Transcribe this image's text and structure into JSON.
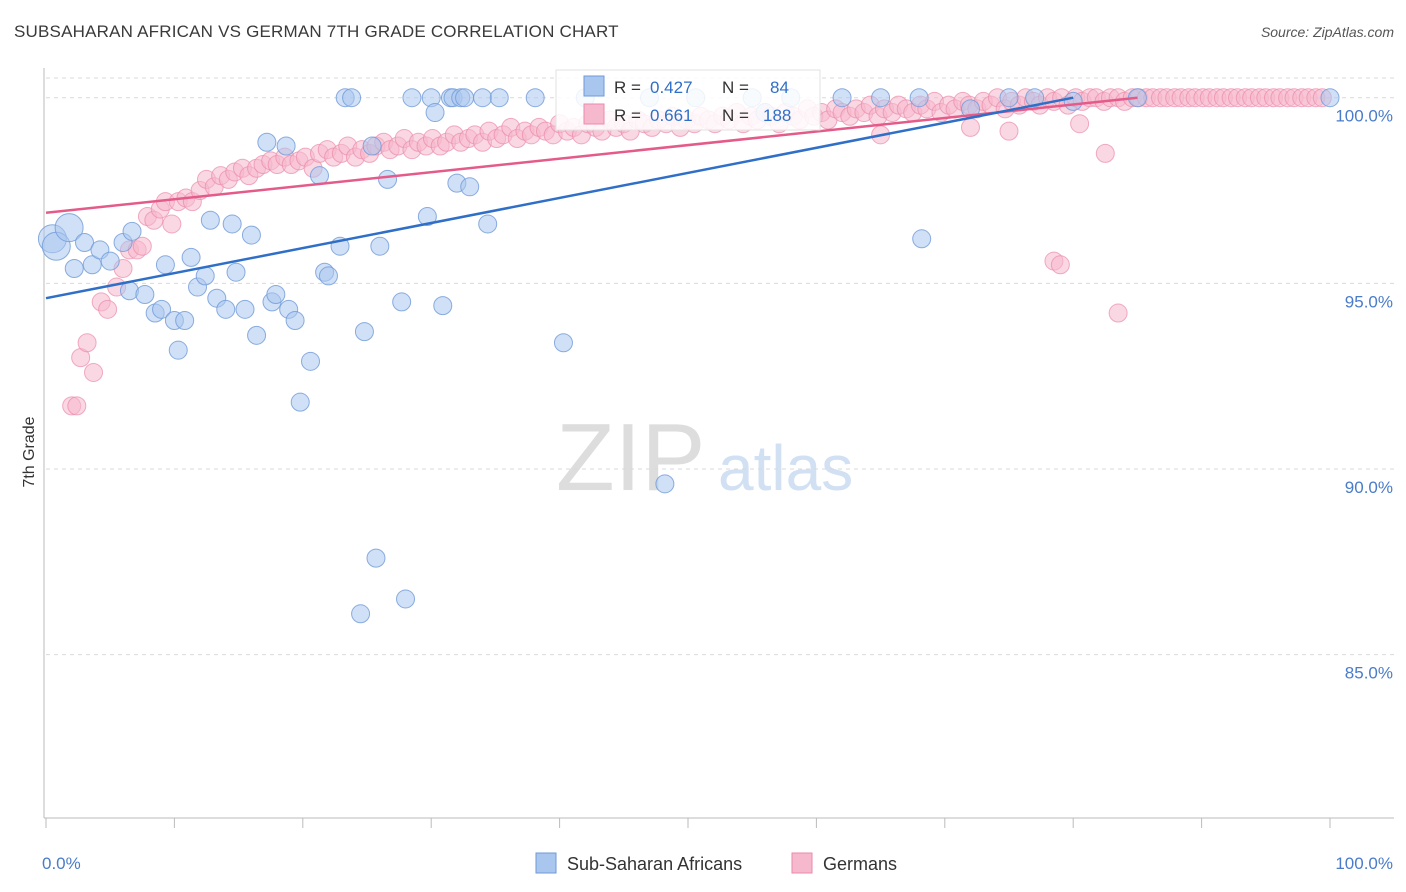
{
  "header": {
    "title": "SUBSAHARAN AFRICAN VS GERMAN 7TH GRADE CORRELATION CHART",
    "source": "Source: ZipAtlas.com"
  },
  "watermark": {
    "zip": "ZIP",
    "atlas": "atlas"
  },
  "legend_stats": {
    "r_label": "R =",
    "n_label": "N =",
    "rows": [
      {
        "r": "0.427",
        "n": "84",
        "color": "#a9c6ee"
      },
      {
        "r": "0.661",
        "n": "188",
        "color": "#f6b8cc"
      }
    ]
  },
  "colors": {
    "blue_fill": "#a9c6ee",
    "blue_stroke": "#6f9ad8",
    "blue_line": "#2f6fc7",
    "pink_fill": "#f6b8cc",
    "pink_stroke": "#eb8aaa",
    "pink_line": "#e45b8a",
    "tick_label": "#4a7cc9",
    "grid": "#d9d9d9"
  },
  "chart_data": {
    "type": "scatter",
    "title": "SUBSAHARAN AFRICAN VS GERMAN 7TH GRADE CORRELATION CHART",
    "xlabel": "",
    "ylabel": "7th Grade",
    "x_tick_labels": [
      "0.0%",
      "100.0%"
    ],
    "y_tick_labels": [
      "85.0%",
      "90.0%",
      "95.0%",
      "100.0%"
    ],
    "y_ticks": [
      85,
      90,
      95,
      100
    ],
    "xlim": [
      0,
      100
    ],
    "ylim": [
      80.6,
      100.8
    ],
    "grid": "horizontal dashed",
    "legend_position": "bottom",
    "series": [
      {
        "name": "Sub-Saharan Africans",
        "color": "#a9c6ee",
        "r": 0.427,
        "n": 84,
        "trend": {
          "x": [
            0,
            80
          ],
          "y": [
            94.6,
            100.0
          ]
        },
        "points": [
          [
            0.5,
            96.2
          ],
          [
            0.8,
            96.0
          ],
          [
            1.8,
            96.5
          ],
          [
            2.2,
            95.4
          ],
          [
            3.0,
            96.1
          ],
          [
            3.6,
            95.5
          ],
          [
            4.2,
            95.9
          ],
          [
            5.0,
            95.6
          ],
          [
            6.0,
            96.1
          ],
          [
            6.5,
            94.8
          ],
          [
            6.7,
            96.4
          ],
          [
            7.7,
            94.7
          ],
          [
            8.5,
            94.2
          ],
          [
            9.0,
            94.3
          ],
          [
            9.3,
            95.5
          ],
          [
            10.0,
            94.0
          ],
          [
            10.3,
            93.2
          ],
          [
            10.8,
            94.0
          ],
          [
            11.3,
            95.7
          ],
          [
            11.8,
            94.9
          ],
          [
            12.4,
            95.2
          ],
          [
            12.8,
            96.7
          ],
          [
            13.3,
            94.6
          ],
          [
            14.0,
            94.3
          ],
          [
            14.5,
            96.6
          ],
          [
            14.8,
            95.3
          ],
          [
            15.5,
            94.3
          ],
          [
            16.0,
            96.3
          ],
          [
            16.4,
            93.6
          ],
          [
            17.2,
            98.8
          ],
          [
            17.6,
            94.5
          ],
          [
            17.9,
            94.7
          ],
          [
            18.7,
            98.7
          ],
          [
            18.9,
            94.3
          ],
          [
            19.4,
            94.0
          ],
          [
            19.8,
            91.8
          ],
          [
            20.6,
            92.9
          ],
          [
            21.3,
            97.9
          ],
          [
            21.7,
            95.3
          ],
          [
            22.0,
            95.2
          ],
          [
            22.9,
            96.0
          ],
          [
            23.3,
            100.0
          ],
          [
            23.8,
            100.0
          ],
          [
            24.5,
            86.1
          ],
          [
            24.8,
            93.7
          ],
          [
            25.4,
            98.7
          ],
          [
            25.7,
            87.6
          ],
          [
            26.0,
            96.0
          ],
          [
            26.6,
            97.8
          ],
          [
            27.7,
            94.5
          ],
          [
            28.0,
            86.5
          ],
          [
            28.5,
            100.0
          ],
          [
            29.7,
            96.8
          ],
          [
            30.0,
            100.0
          ],
          [
            30.3,
            99.6
          ],
          [
            30.9,
            94.4
          ],
          [
            31.5,
            100.0
          ],
          [
            31.7,
            100.0
          ],
          [
            32.0,
            97.7
          ],
          [
            32.3,
            100.0
          ],
          [
            32.6,
            100.0
          ],
          [
            33.0,
            97.6
          ],
          [
            34.0,
            100.0
          ],
          [
            34.4,
            96.6
          ],
          [
            35.3,
            100.0
          ],
          [
            38.1,
            100.0
          ],
          [
            40.3,
            93.4
          ],
          [
            42.0,
            100.0
          ],
          [
            47.0,
            100.0
          ],
          [
            48.2,
            89.6
          ],
          [
            50.6,
            100.0
          ],
          [
            55.0,
            100.0
          ],
          [
            56.0,
            99.6
          ],
          [
            58.0,
            100.0
          ],
          [
            62.0,
            100.0
          ],
          [
            65.0,
            100.0
          ],
          [
            68.0,
            100.0
          ],
          [
            68.2,
            96.2
          ],
          [
            72.0,
            99.7
          ],
          [
            75.0,
            100.0
          ],
          [
            77.0,
            100.0
          ],
          [
            80.0,
            99.9
          ],
          [
            85.0,
            100.0
          ],
          [
            100.0,
            100.0
          ]
        ]
      },
      {
        "name": "Germans",
        "color": "#f6b8cc",
        "r": 0.661,
        "n": 188,
        "trend": {
          "x": [
            0,
            85
          ],
          "y": [
            96.9,
            100.0
          ]
        },
        "points": [
          [
            2.0,
            91.7
          ],
          [
            2.4,
            91.7
          ],
          [
            2.7,
            93.0
          ],
          [
            3.2,
            93.4
          ],
          [
            3.7,
            92.6
          ],
          [
            4.3,
            94.5
          ],
          [
            4.8,
            94.3
          ],
          [
            5.5,
            94.9
          ],
          [
            6.0,
            95.4
          ],
          [
            6.5,
            95.9
          ],
          [
            7.1,
            95.9
          ],
          [
            7.5,
            96.0
          ],
          [
            7.9,
            96.8
          ],
          [
            8.4,
            96.7
          ],
          [
            8.9,
            97.0
          ],
          [
            9.3,
            97.2
          ],
          [
            9.8,
            96.6
          ],
          [
            10.3,
            97.2
          ],
          [
            10.9,
            97.3
          ],
          [
            11.4,
            97.2
          ],
          [
            12.0,
            97.5
          ],
          [
            12.5,
            97.8
          ],
          [
            13.1,
            97.6
          ],
          [
            13.6,
            97.9
          ],
          [
            14.2,
            97.8
          ],
          [
            14.7,
            98.0
          ],
          [
            15.3,
            98.1
          ],
          [
            15.8,
            97.9
          ],
          [
            16.4,
            98.1
          ],
          [
            16.9,
            98.2
          ],
          [
            17.5,
            98.3
          ],
          [
            18.0,
            98.2
          ],
          [
            18.6,
            98.4
          ],
          [
            19.1,
            98.2
          ],
          [
            19.7,
            98.3
          ],
          [
            20.2,
            98.4
          ],
          [
            20.8,
            98.1
          ],
          [
            21.3,
            98.5
          ],
          [
            21.9,
            98.6
          ],
          [
            22.4,
            98.4
          ],
          [
            23.0,
            98.5
          ],
          [
            23.5,
            98.7
          ],
          [
            24.1,
            98.4
          ],
          [
            24.6,
            98.6
          ],
          [
            25.2,
            98.5
          ],
          [
            25.7,
            98.7
          ],
          [
            26.3,
            98.8
          ],
          [
            26.8,
            98.6
          ],
          [
            27.4,
            98.7
          ],
          [
            27.9,
            98.9
          ],
          [
            28.5,
            98.6
          ],
          [
            29.0,
            98.8
          ],
          [
            29.6,
            98.7
          ],
          [
            30.1,
            98.9
          ],
          [
            30.7,
            98.7
          ],
          [
            31.2,
            98.8
          ],
          [
            31.8,
            99.0
          ],
          [
            32.3,
            98.8
          ],
          [
            32.9,
            98.9
          ],
          [
            33.4,
            99.0
          ],
          [
            34.0,
            98.8
          ],
          [
            34.5,
            99.1
          ],
          [
            35.1,
            98.9
          ],
          [
            35.6,
            99.0
          ],
          [
            36.2,
            99.2
          ],
          [
            36.7,
            98.9
          ],
          [
            37.3,
            99.1
          ],
          [
            37.8,
            99.0
          ],
          [
            38.4,
            99.2
          ],
          [
            38.9,
            99.1
          ],
          [
            39.5,
            99.0
          ],
          [
            40.0,
            99.3
          ],
          [
            40.6,
            99.1
          ],
          [
            41.1,
            99.2
          ],
          [
            41.7,
            99.0
          ],
          [
            42.2,
            99.3
          ],
          [
            42.8,
            99.2
          ],
          [
            43.3,
            99.1
          ],
          [
            43.9,
            99.4
          ],
          [
            44.4,
            99.2
          ],
          [
            45.0,
            99.3
          ],
          [
            45.5,
            99.1
          ],
          [
            46.1,
            99.4
          ],
          [
            46.6,
            99.3
          ],
          [
            47.2,
            99.2
          ],
          [
            47.7,
            99.4
          ],
          [
            48.3,
            99.3
          ],
          [
            48.8,
            99.5
          ],
          [
            49.4,
            99.2
          ],
          [
            49.9,
            99.4
          ],
          [
            50.5,
            99.3
          ],
          [
            51.0,
            99.5
          ],
          [
            51.6,
            99.4
          ],
          [
            52.1,
            99.3
          ],
          [
            52.7,
            99.5
          ],
          [
            53.2,
            99.4
          ],
          [
            53.8,
            99.6
          ],
          [
            54.3,
            99.3
          ],
          [
            54.9,
            99.5
          ],
          [
            55.4,
            99.4
          ],
          [
            56.0,
            99.6
          ],
          [
            56.5,
            99.5
          ],
          [
            57.1,
            99.3
          ],
          [
            57.6,
            99.6
          ],
          [
            58.2,
            99.5
          ],
          [
            58.7,
            99.4
          ],
          [
            59.3,
            99.7
          ],
          [
            59.8,
            99.5
          ],
          [
            60.4,
            99.6
          ],
          [
            60.9,
            99.4
          ],
          [
            61.5,
            99.7
          ],
          [
            62.0,
            99.6
          ],
          [
            62.6,
            99.5
          ],
          [
            63.1,
            99.7
          ],
          [
            63.7,
            99.6
          ],
          [
            64.2,
            99.8
          ],
          [
            64.8,
            99.5
          ],
          [
            65.3,
            99.7
          ],
          [
            65.9,
            99.6
          ],
          [
            66.4,
            99.8
          ],
          [
            67.0,
            99.7
          ],
          [
            67.5,
            99.6
          ],
          [
            68.1,
            99.8
          ],
          [
            68.6,
            99.7
          ],
          [
            69.2,
            99.9
          ],
          [
            69.7,
            99.6
          ],
          [
            70.3,
            99.8
          ],
          [
            70.8,
            99.7
          ],
          [
            71.4,
            99.9
          ],
          [
            71.9,
            99.8
          ],
          [
            72.5,
            99.7
          ],
          [
            73.0,
            99.9
          ],
          [
            73.6,
            99.8
          ],
          [
            74.1,
            100.0
          ],
          [
            74.7,
            99.7
          ],
          [
            75.2,
            99.9
          ],
          [
            75.8,
            99.8
          ],
          [
            76.3,
            100.0
          ],
          [
            76.9,
            99.9
          ],
          [
            77.4,
            99.8
          ],
          [
            78.0,
            100.0
          ],
          [
            78.5,
            99.9
          ],
          [
            79.1,
            100.0
          ],
          [
            79.6,
            99.8
          ],
          [
            80.2,
            100.0
          ],
          [
            80.7,
            99.9
          ],
          [
            81.3,
            100.0
          ],
          [
            81.8,
            100.0
          ],
          [
            82.4,
            99.9
          ],
          [
            82.9,
            100.0
          ],
          [
            83.5,
            100.0
          ],
          [
            84.0,
            99.9
          ],
          [
            84.6,
            100.0
          ],
          [
            85.1,
            100.0
          ],
          [
            85.7,
            100.0
          ],
          [
            86.2,
            100.0
          ],
          [
            86.8,
            100.0
          ],
          [
            87.3,
            100.0
          ],
          [
            87.9,
            100.0
          ],
          [
            88.4,
            100.0
          ],
          [
            89.0,
            100.0
          ],
          [
            89.5,
            100.0
          ],
          [
            90.1,
            100.0
          ],
          [
            90.6,
            100.0
          ],
          [
            91.2,
            100.0
          ],
          [
            91.7,
            100.0
          ],
          [
            92.3,
            100.0
          ],
          [
            92.8,
            100.0
          ],
          [
            93.4,
            100.0
          ],
          [
            93.9,
            100.0
          ],
          [
            94.5,
            100.0
          ],
          [
            95.0,
            100.0
          ],
          [
            95.6,
            100.0
          ],
          [
            96.1,
            100.0
          ],
          [
            96.7,
            100.0
          ],
          [
            97.2,
            100.0
          ],
          [
            97.8,
            100.0
          ],
          [
            98.3,
            100.0
          ],
          [
            98.9,
            100.0
          ],
          [
            99.4,
            100.0
          ],
          [
            78.5,
            95.6
          ],
          [
            79.0,
            95.5
          ],
          [
            83.5,
            94.2
          ],
          [
            82.5,
            98.5
          ],
          [
            80.5,
            99.3
          ],
          [
            65.0,
            99.0
          ],
          [
            72.0,
            99.2
          ],
          [
            75.0,
            99.1
          ]
        ]
      }
    ]
  },
  "bottom_legend": [
    {
      "label": "Sub-Saharan Africans",
      "color": "#a9c6ee"
    },
    {
      "label": "Germans",
      "color": "#f6b8cc"
    }
  ]
}
